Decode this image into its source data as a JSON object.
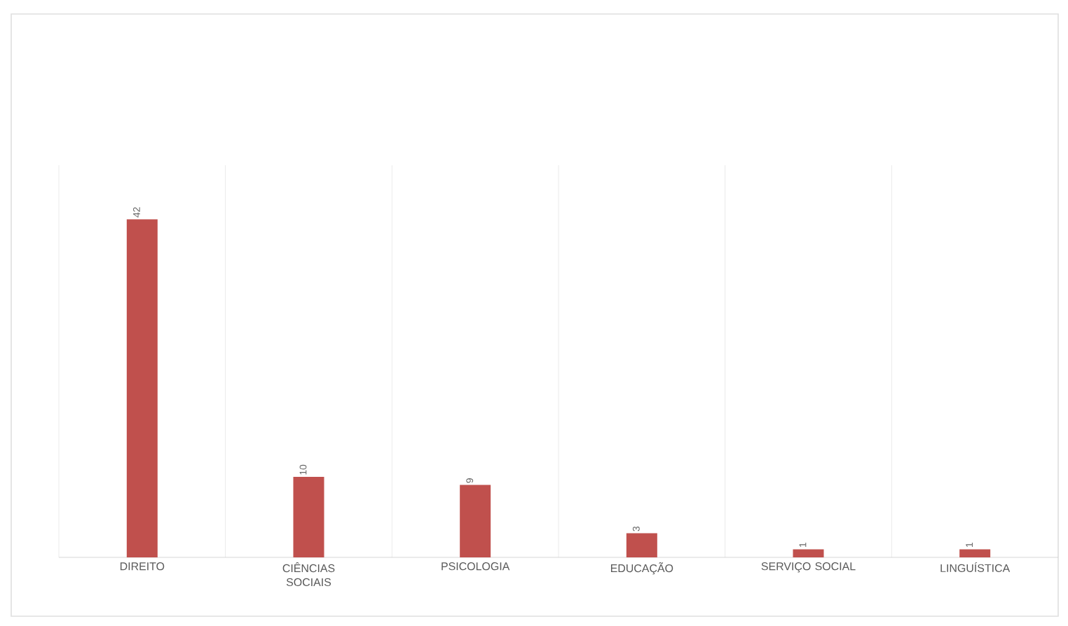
{
  "chart_data": {
    "type": "bar",
    "categories": [
      "DIREITO",
      "CIÊNCIAS SOCIAIS",
      "PSICOLOGIA",
      "EDUCAÇÃO",
      "SERVIÇO SOCIAL",
      "LINGUÍSTICA"
    ],
    "values": [
      42,
      10,
      9,
      3,
      1,
      1
    ],
    "color": "#c0504d",
    "data_labels": true,
    "grid": "x"
  }
}
